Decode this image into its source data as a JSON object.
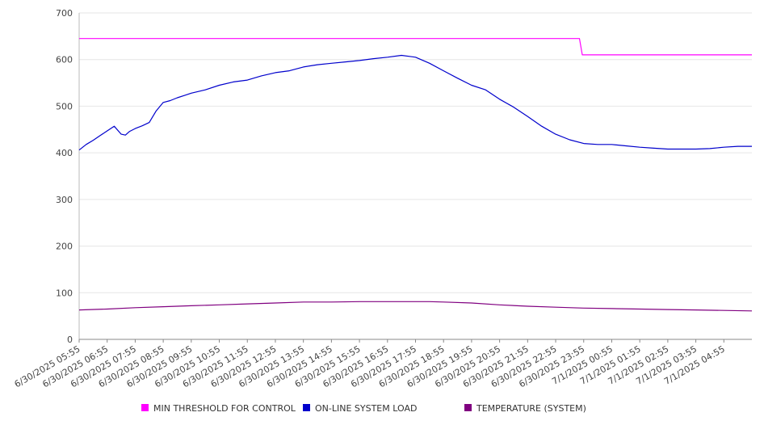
{
  "chart_data": {
    "type": "line",
    "title": "",
    "xlabel": "",
    "ylabel": "",
    "ylim": [
      0,
      700
    ],
    "yticks": [
      0,
      100,
      200,
      300,
      400,
      500,
      600,
      700
    ],
    "grid": true,
    "legend_position": "bottom",
    "categories": [
      "6/30/2025 05:55",
      "6/30/2025 06:55",
      "6/30/2025 07:55",
      "6/30/2025 08:55",
      "6/30/2025 09:55",
      "6/30/2025 10:55",
      "6/30/2025 11:55",
      "6/30/2025 12:55",
      "6/30/2025 13:55",
      "6/30/2025 14:55",
      "6/30/2025 15:55",
      "6/30/2025 16:55",
      "6/30/2025 17:55",
      "6/30/2025 18:55",
      "6/30/2025 19:55",
      "6/30/2025 20:55",
      "6/30/2025 21:55",
      "6/30/2025 22:55",
      "6/30/2025 23:55",
      "7/1/2025 00:55",
      "7/1/2025 01:55",
      "7/1/2025 02:55",
      "7/1/2025 03:55",
      "7/1/2025 04:55"
    ],
    "series": [
      {
        "name": "MIN THRESHOLD FOR CONTROL",
        "color": "#ff00ff",
        "x": [
          0,
          17.85,
          17.95,
          24
        ],
        "values": [
          645,
          645,
          610,
          610
        ]
      },
      {
        "name": "ON-LINE SYSTEM LOAD",
        "color": "#0000cc",
        "x": [
          0,
          0.25,
          0.5,
          0.75,
          1,
          1.25,
          1.5,
          1.65,
          1.8,
          2,
          2.25,
          2.5,
          2.75,
          3,
          3.25,
          3.5,
          3.75,
          4,
          4.5,
          5,
          5.5,
          6,
          6.5,
          7,
          7.5,
          8,
          8.5,
          9,
          9.5,
          10,
          10.5,
          11,
          11.5,
          12,
          12.5,
          13,
          13.5,
          14,
          14.5,
          15,
          15.5,
          16,
          16.5,
          17,
          17.5,
          18,
          18.5,
          19,
          19.5,
          20,
          20.5,
          21,
          21.5,
          22,
          22.5,
          23,
          23.5,
          24
        ],
        "values": [
          406,
          418,
          427,
          437,
          447,
          457,
          440,
          438,
          446,
          452,
          458,
          465,
          490,
          508,
          512,
          518,
          523,
          528,
          535,
          545,
          552,
          556,
          565,
          572,
          576,
          584,
          589,
          592,
          595,
          598,
          602,
          605,
          609,
          605,
          592,
          576,
          560,
          545,
          535,
          515,
          498,
          478,
          457,
          440,
          428,
          420,
          418,
          418,
          415,
          412,
          410,
          408,
          408,
          408,
          409,
          412,
          414,
          414
        ]
      },
      {
        "name": "TEMPERATURE (SYSTEM)",
        "color": "#800080",
        "x": [
          0,
          1,
          2,
          3,
          4,
          5,
          6,
          7,
          8,
          9,
          10,
          11,
          12,
          12.5,
          13,
          14,
          15,
          16,
          17,
          18,
          19,
          20,
          21,
          22,
          23,
          24
        ],
        "values": [
          63,
          65,
          68,
          70,
          72,
          74,
          76,
          78,
          80,
          80,
          81,
          81,
          81,
          81,
          80,
          78,
          74,
          71,
          69,
          67,
          66,
          65,
          64,
          63,
          62,
          61
        ]
      }
    ]
  }
}
